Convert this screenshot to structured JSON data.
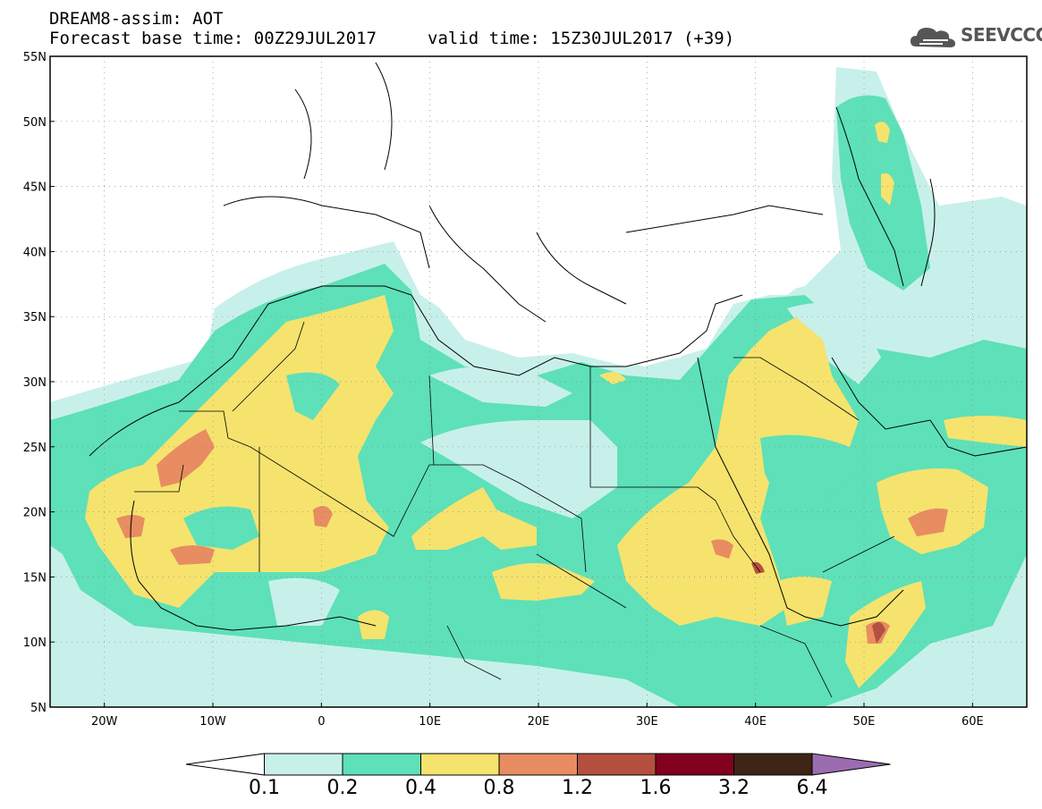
{
  "header": {
    "line1": "DREAM8-assim: AOT",
    "line2": "Forecast base time: 00Z29JUL2017",
    "valid": "valid time: 15Z30JUL2017 (+39)"
  },
  "logo": {
    "text": "SEEVCCC",
    "icon": "cloud-icon"
  },
  "map": {
    "lon_range": [
      -25,
      65
    ],
    "lat_range": [
      5,
      55
    ],
    "y_ticks": [
      "5N",
      "10N",
      "15N",
      "20N",
      "25N",
      "30N",
      "35N",
      "40N",
      "45N",
      "50N",
      "55N"
    ],
    "x_ticks": [
      "20W",
      "10W",
      "0",
      "10E",
      "20E",
      "30E",
      "40E",
      "50E",
      "60E"
    ],
    "grid": true
  },
  "colorbar": {
    "labels": [
      "0.1",
      "0.2",
      "0.4",
      "0.8",
      "1.2",
      "1.6",
      "3.2",
      "6.4"
    ],
    "colors": [
      "#ffffff",
      "#c8f0ea",
      "#5ee0b8",
      "#f5e36e",
      "#e88c62",
      "#b55040",
      "#820020",
      "#3e2414",
      "#9c6cb0"
    ]
  }
}
